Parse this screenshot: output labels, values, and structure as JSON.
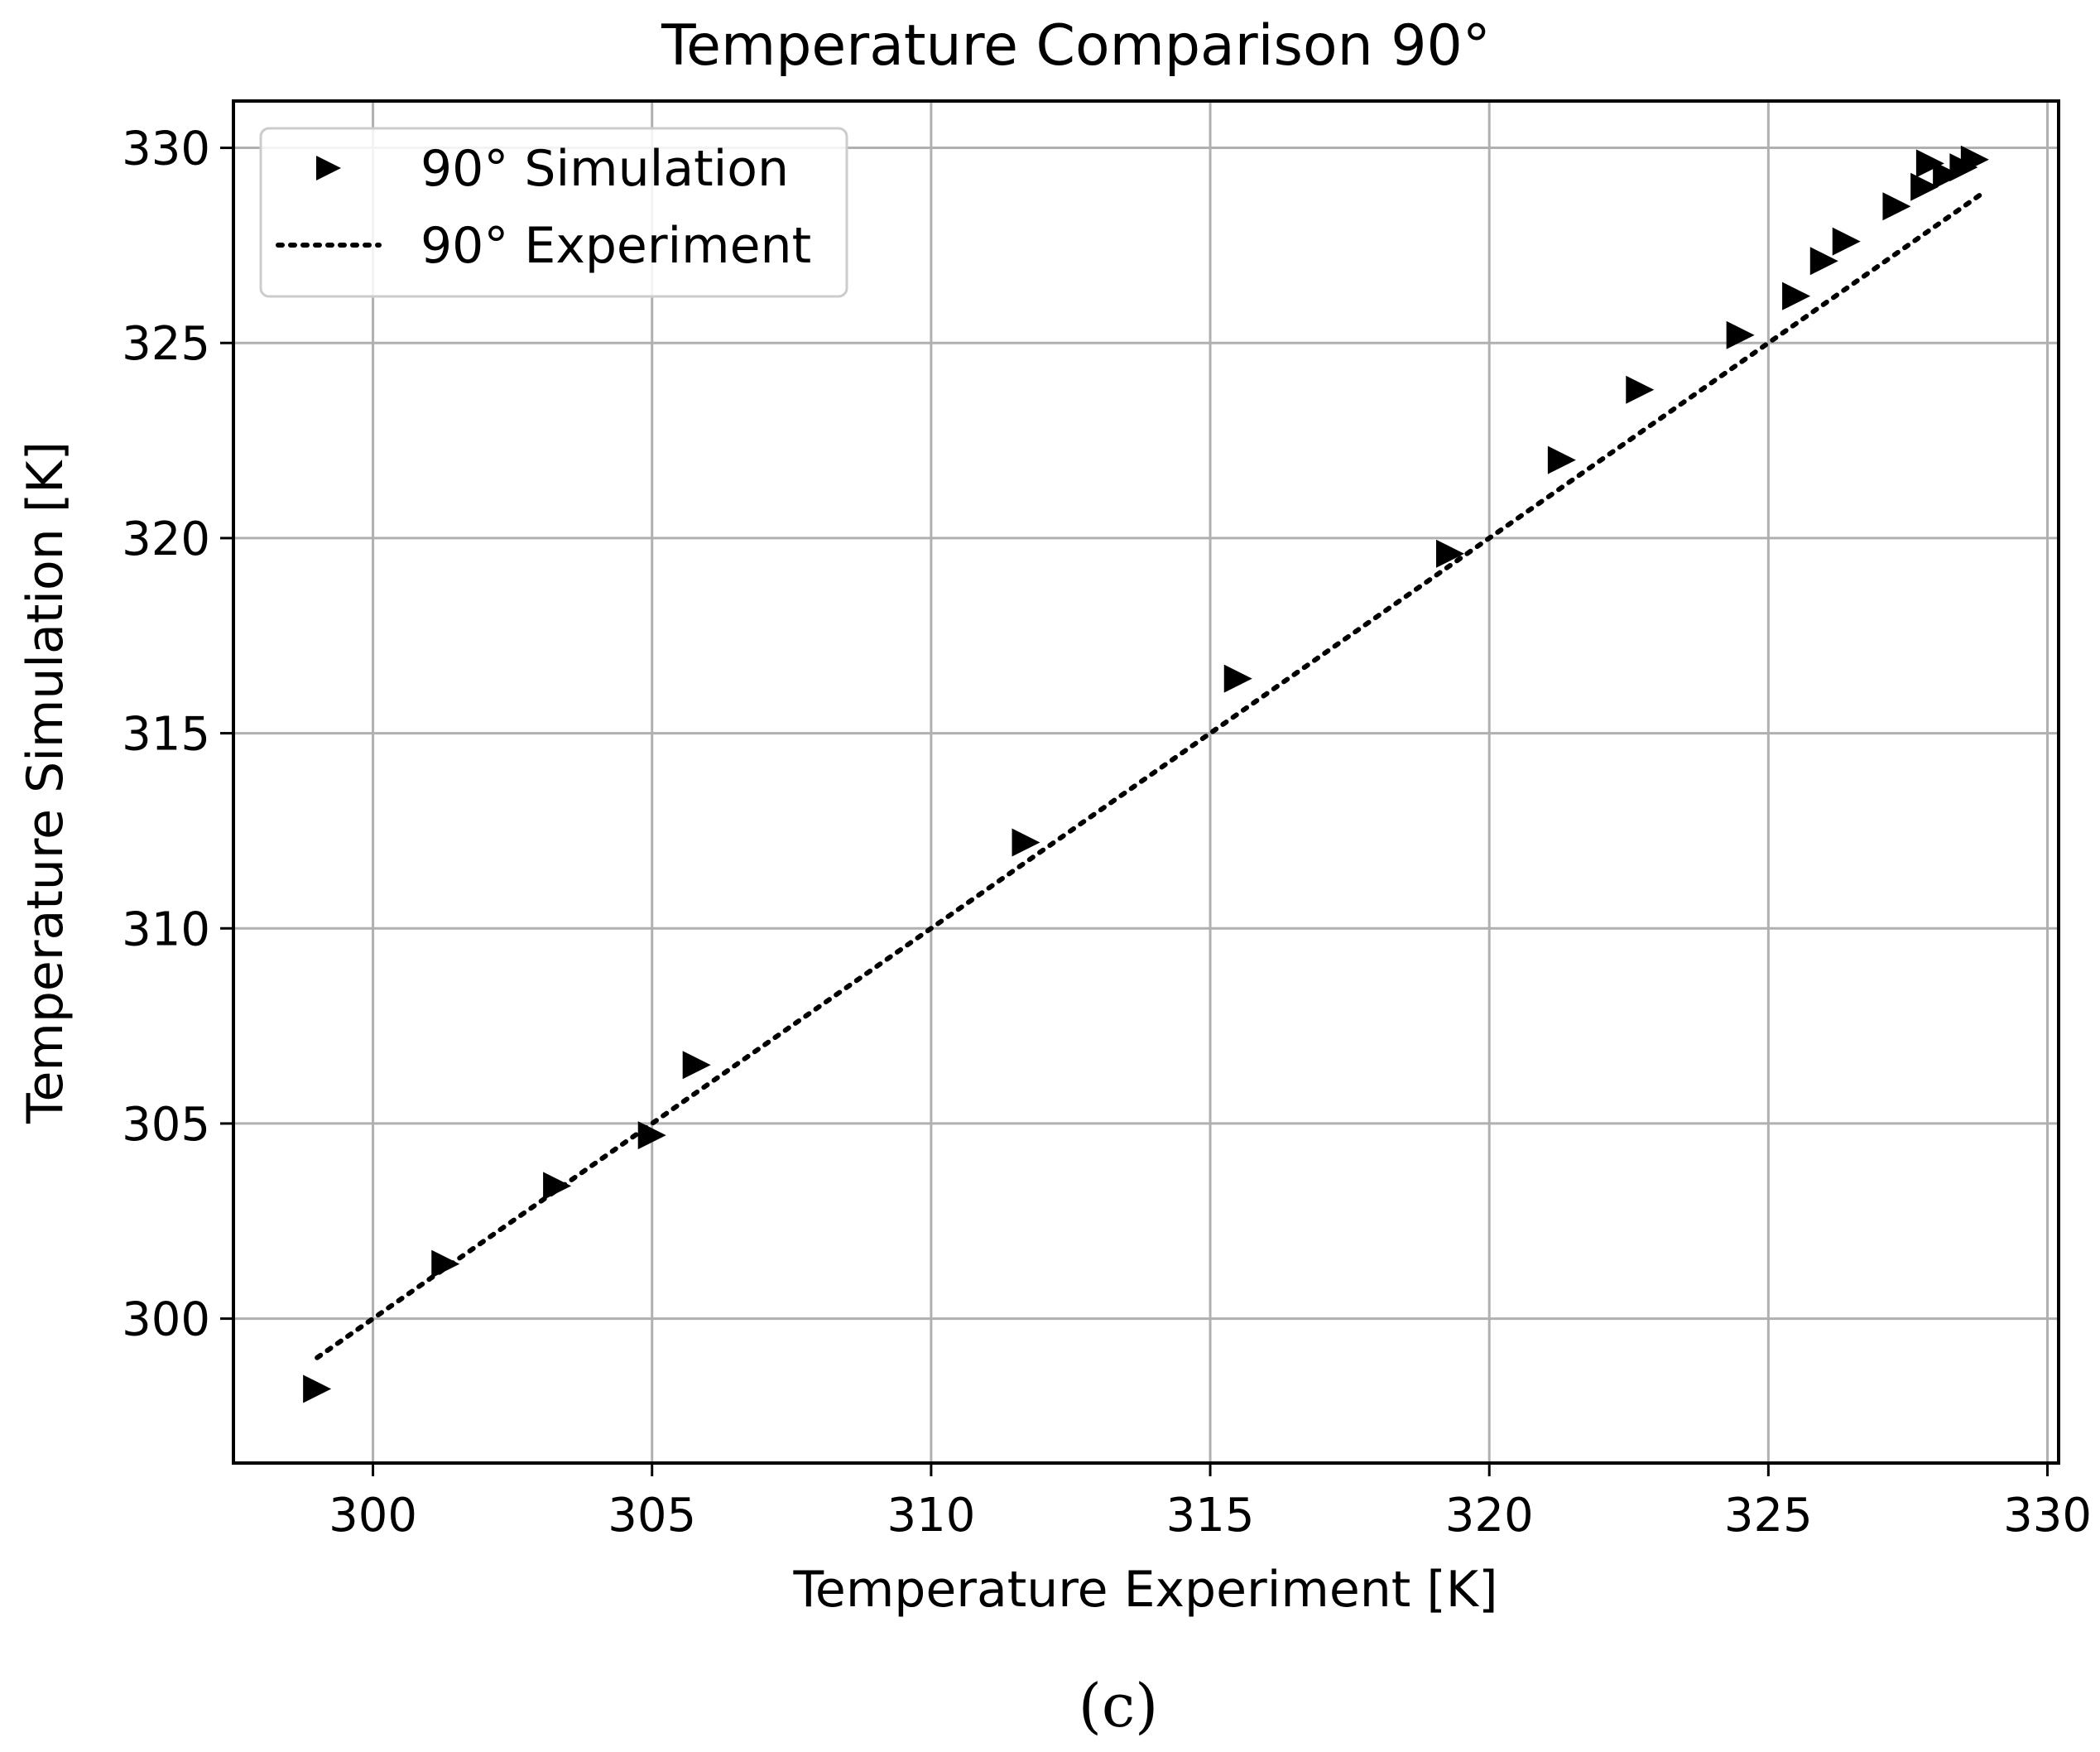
{
  "chart_data": {
    "type": "scatter",
    "title": "Temperature Comparison 90°",
    "xlabel": "Temperature Experiment [K]",
    "ylabel": "Temperature Simulation [K]",
    "xlim": [
      297.5,
      330.2
    ],
    "ylim": [
      296.3,
      331.2
    ],
    "xticks": [
      300,
      305,
      310,
      315,
      320,
      325,
      330
    ],
    "yticks": [
      300,
      305,
      310,
      315,
      320,
      325,
      330
    ],
    "grid": true,
    "legend_position": "top-left",
    "series": [
      {
        "name": "90° Simulation",
        "kind": "scatter",
        "marker": "triangle-right",
        "color": "#000000",
        "points": [
          [
            299.0,
            298.2
          ],
          [
            301.3,
            301.4
          ],
          [
            303.3,
            303.4
          ],
          [
            305.0,
            304.7
          ],
          [
            305.8,
            306.5
          ],
          [
            311.7,
            312.2
          ],
          [
            315.5,
            316.4
          ],
          [
            319.3,
            319.6
          ],
          [
            321.3,
            322.0
          ],
          [
            322.7,
            323.8
          ],
          [
            324.5,
            325.2
          ],
          [
            325.5,
            326.2
          ],
          [
            326.0,
            327.1
          ],
          [
            326.4,
            327.6
          ],
          [
            327.3,
            328.5
          ],
          [
            327.8,
            329.0
          ],
          [
            327.9,
            329.6
          ],
          [
            328.2,
            329.3
          ],
          [
            328.5,
            329.5
          ],
          [
            328.7,
            329.7
          ]
        ]
      },
      {
        "name": "90° Experiment",
        "kind": "line",
        "style": "dotted",
        "color": "#000000",
        "points": [
          [
            299.0,
            299.0
          ],
          [
            328.8,
            328.8
          ]
        ]
      }
    ]
  },
  "caption": "(c)"
}
